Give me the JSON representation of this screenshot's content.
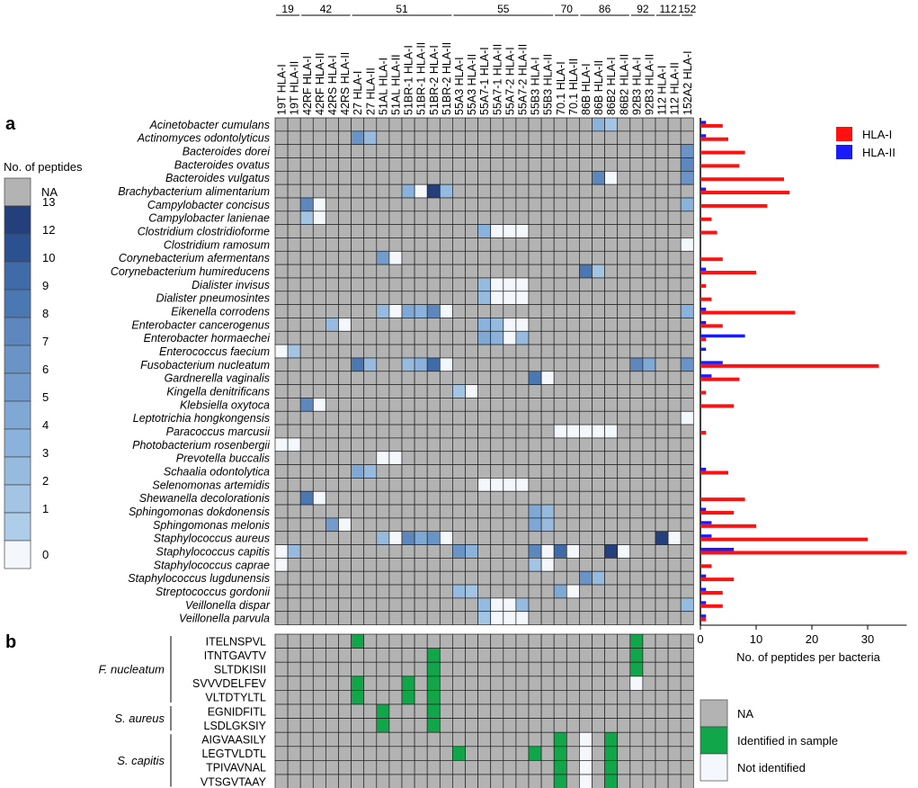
{
  "panel_labels": {
    "a": "a",
    "b": "b"
  },
  "colors": {
    "na": "#b3b3b3",
    "zero": "#f4f8fc",
    "identified": "#12a64a",
    "not_identified": "#f4f8fc",
    "hla_i": "#ff1111",
    "hla_ii": "#1a1aff",
    "highlight_text": "#e41a1c",
    "scale": [
      "#f4f8fc",
      "#aecde8",
      "#a3c4e3",
      "#97bbdf",
      "#8bb2da",
      "#80a8d4",
      "#739ccc",
      "#6a94c6",
      "#5e88bd",
      "#4a78b3",
      "#3f6ba8",
      "#355e9c",
      "#2c5190",
      "#233f7c"
    ]
  },
  "patients": [
    {
      "label": "19",
      "cols": 2
    },
    {
      "label": "42",
      "cols": 4
    },
    {
      "label": "51",
      "cols": 8
    },
    {
      "label": "55",
      "cols": 8
    },
    {
      "label": "70",
      "cols": 2
    },
    {
      "label": "86",
      "cols": 4
    },
    {
      "label": "92",
      "cols": 2
    },
    {
      "label": "112",
      "cols": 2
    },
    {
      "label": "152",
      "cols": 1
    }
  ],
  "columns": [
    "19T HLA-I",
    "19T HLA-II",
    "42RF HLA-I",
    "42RF HLA-II",
    "42RS HLA-I",
    "42RS HLA-II",
    "27 HLA-I",
    "27 HLA-II",
    "51AL HLA-I",
    "51AL HLA-II",
    "51BR-1 HLA-I",
    "51BR-1 HLA-II",
    "51BR-2 HLA-I",
    "51BR-2 HLA-II",
    "55A3 HLA-I",
    "55A3 HLA-II",
    "55A7-1 HLA-I",
    "55A7-1 HLA-II",
    "55A7-2 HLA-I",
    "55A7-2 HLA-II",
    "55B3 HLA-I",
    "55B3 HLA-II",
    "70.1 HLA-I",
    "70.1 HLA-II",
    "86B HLA-I",
    "86B HLA-II",
    "86B2 HLA-I",
    "86B2 HLA-II",
    "92B3 HLA-I",
    "92B3 HLA-II",
    "112 HLA-I",
    "112 HLA-II",
    "152A2 HLA-I"
  ],
  "legend_a": {
    "title": "No. of peptides",
    "na_label": "NA",
    "levels": [
      "13",
      "12",
      "10",
      "9",
      "8",
      "7",
      "6",
      "5",
      "4",
      "3",
      "2",
      "1",
      "0"
    ],
    "level_values": [
      13,
      12,
      10,
      9,
      8,
      7,
      6,
      5,
      4,
      3,
      2,
      1,
      0
    ]
  },
  "heatmap_a": {
    "bacteria": [
      {
        "name": "Acinetobacter cumulans",
        "red": false,
        "cells": {
          "25": 4,
          "26": 2
        }
      },
      {
        "name": "Actinomyces odontolyticus",
        "red": false,
        "cells": {
          "6": 7,
          "7": 3
        }
      },
      {
        "name": "Bacteroides dorei",
        "red": false,
        "cells": {
          "32": 7
        }
      },
      {
        "name": "Bacteroides ovatus",
        "red": false,
        "cells": {
          "32": 8
        }
      },
      {
        "name": "Bacteroides vulgatus",
        "red": true,
        "cells": {
          "25": 8,
          "26": 0,
          "32": 7
        }
      },
      {
        "name": "Brachybacterium alimentarium",
        "red": false,
        "cells": {
          "10": 4,
          "11": 0,
          "12": 13,
          "13": 3
        }
      },
      {
        "name": "Campylobacter concisus",
        "red": true,
        "cells": {
          "2": 8,
          "3": 0,
          "32": 4
        }
      },
      {
        "name": "Campylobacter lanienae",
        "red": false,
        "cells": {
          "2": 2,
          "3": 0
        }
      },
      {
        "name": "Clostridium clostridioforme",
        "red": true,
        "cells": {
          "16": 4,
          "17": 0,
          "18": 0,
          "19": 0
        }
      },
      {
        "name": "Clostridium ramosum",
        "red": false,
        "cells": {
          "32": 0
        }
      },
      {
        "name": "Corynebacterium afermentans",
        "red": false,
        "cells": {
          "8": 6,
          "9": 0
        }
      },
      {
        "name": "Corynebacterium humireducens",
        "red": false,
        "cells": {
          "24": 9,
          "25": 2
        }
      },
      {
        "name": "Dialister invisus",
        "red": false,
        "cells": {
          "16": 3,
          "17": 0,
          "18": 0,
          "19": 0
        }
      },
      {
        "name": "Dialister pneumosintes",
        "red": false,
        "cells": {
          "16": 3,
          "17": 0,
          "18": 0,
          "19": 0
        }
      },
      {
        "name": "Eikenella corrodens",
        "red": false,
        "cells": {
          "8": 3,
          "9": 0,
          "10": 5,
          "11": 4,
          "12": 8,
          "13": 0,
          "32": 4
        }
      },
      {
        "name": "Enterobacter cancerogenus",
        "red": false,
        "cells": {
          "4": 3,
          "5": 0,
          "16": 4,
          "17": 3,
          "18": 0,
          "19": 0
        }
      },
      {
        "name": "Enterobacter hormaechei",
        "red": true,
        "cells": {
          "16": 5,
          "17": 4,
          "18": 0,
          "19": 3
        }
      },
      {
        "name": "Enterococcus faecium",
        "red": false,
        "cells": {
          "0": 0,
          "1": 2
        }
      },
      {
        "name": "Fusobacterium nucleatum",
        "red": true,
        "cells": {
          "6": 9,
          "7": 3,
          "10": 3,
          "11": 4,
          "12": 10,
          "13": 0,
          "28": 8,
          "29": 5,
          "32": 7
        }
      },
      {
        "name": "Gardnerella vaginalis",
        "red": true,
        "cells": {
          "20": 9,
          "21": 0
        }
      },
      {
        "name": "Kingella denitrificans",
        "red": false,
        "cells": {
          "14": 2,
          "15": 0
        }
      },
      {
        "name": "Klebsiella oxytoca",
        "red": false,
        "cells": {
          "2": 8,
          "3": 0
        }
      },
      {
        "name": "Leptotrichia hongkongensis",
        "red": false,
        "cells": {
          "32": 0
        }
      },
      {
        "name": "Paracoccus marcusii",
        "red": false,
        "cells": {
          "22": 0,
          "23": 0,
          "24": 0,
          "25": 0,
          "26": 0
        }
      },
      {
        "name": "Photobacterium rosenbergii",
        "red": false,
        "cells": {
          "0": 0,
          "1": 0
        }
      },
      {
        "name": "Prevotella buccalis",
        "red": false,
        "cells": {
          "8": 0,
          "9": 0
        }
      },
      {
        "name": "Schaalia odontolytica",
        "red": false,
        "cells": {
          "6": 5,
          "7": 3
        }
      },
      {
        "name": "Selenomonas artemidis",
        "red": false,
        "cells": {
          "16": 0,
          "17": 0,
          "18": 0,
          "19": 0
        }
      },
      {
        "name": "Shewanella decolorationis",
        "red": false,
        "cells": {
          "2": 9,
          "3": 0
        }
      },
      {
        "name": "Sphingomonas dokdonensis",
        "red": false,
        "cells": {
          "20": 5,
          "21": 3
        }
      },
      {
        "name": "Sphingomonas melonis",
        "red": false,
        "cells": {
          "4": 6,
          "5": 0,
          "20": 5,
          "21": 3
        }
      },
      {
        "name": "Staphylococcus aureus",
        "red": true,
        "cells": {
          "8": 3,
          "9": 0,
          "10": 8,
          "11": 5,
          "12": 7,
          "13": 0,
          "30": 13,
          "31": 0
        }
      },
      {
        "name": "Staphylococcus capitis",
        "red": true,
        "cells": {
          "0": 0,
          "1": 3,
          "14": 7,
          "15": 4,
          "20": 8,
          "21": 0,
          "22": 10,
          "23": 0,
          "26": 13,
          "27": 0
        }
      },
      {
        "name": "Staphylococcus caprae",
        "red": true,
        "cells": {
          "0": 0,
          "20": 2,
          "21": 0
        }
      },
      {
        "name": "Staphylococcus lugdunensis",
        "red": true,
        "cells": {
          "24": 7,
          "25": 3
        }
      },
      {
        "name": "Streptococcus gordonii",
        "red": true,
        "cells": {
          "14": 3,
          "15": 2,
          "22": 5,
          "23": 0
        }
      },
      {
        "name": "Veillonella dispar",
        "red": false,
        "cells": {
          "16": 3,
          "17": 0,
          "18": 0,
          "19": 3,
          "32": 3
        }
      },
      {
        "name": "Veillonella parvula",
        "red": false,
        "cells": {
          "16": 2,
          "17": 0,
          "18": 0,
          "19": 0
        }
      }
    ]
  },
  "chart_data": {
    "type": "bar",
    "orientation": "horizontal",
    "categories": [
      "Acinetobacter cumulans",
      "Actinomyces odontolyticus",
      "Bacteroides dorei",
      "Bacteroides ovatus",
      "Bacteroides vulgatus",
      "Brachybacterium alimentarium",
      "Campylobacter concisus",
      "Campylobacter lanienae",
      "Clostridium clostridioforme",
      "Clostridium ramosum",
      "Corynebacterium afermentans",
      "Corynebacterium humireducens",
      "Dialister invisus",
      "Dialister pneumosintes",
      "Eikenella corrodens",
      "Enterobacter cancerogenus",
      "Enterobacter hormaechei",
      "Enterococcus faecium",
      "Fusobacterium nucleatum",
      "Gardnerella vaginalis",
      "Kingella denitrificans",
      "Klebsiella oxytoca",
      "Leptotrichia hongkongensis",
      "Paracoccus marcusii",
      "Photobacterium rosenbergii",
      "Prevotella buccalis",
      "Schaalia odontolytica",
      "Selenomonas artemidis",
      "Shewanella decolorationis",
      "Sphingomonas dokdonensis",
      "Sphingomonas melonis",
      "Staphylococcus aureus",
      "Staphylococcus capitis",
      "Staphylococcus caprae",
      "Staphylococcus lugdunensis",
      "Streptococcus gordonii",
      "Veillonella dispar",
      "Veillonella parvula"
    ],
    "series": [
      {
        "name": "HLA-I",
        "values": [
          4,
          5,
          8,
          7,
          15,
          16,
          12,
          2,
          3,
          0,
          4,
          10,
          1,
          2,
          17,
          4,
          1,
          0,
          32,
          7,
          1,
          6,
          0,
          1,
          0,
          0,
          5,
          0,
          8,
          6,
          10,
          30,
          37,
          2,
          6,
          4,
          4,
          1
        ]
      },
      {
        "name": "HLA-II",
        "values": [
          1,
          1,
          0,
          0,
          0,
          1,
          0,
          0,
          0,
          0,
          0,
          1,
          0,
          0,
          1,
          1,
          8,
          1,
          4,
          2,
          0,
          0,
          0,
          0,
          0,
          0,
          1,
          0,
          0,
          1,
          2,
          2,
          6,
          0,
          1,
          1,
          1,
          1
        ]
      }
    ],
    "xlabel": "No. of peptides per bacteria",
    "xticks": [
      "0",
      "10",
      "20",
      "30"
    ],
    "xlim": [
      0,
      37
    ],
    "legend": "top-right"
  },
  "heatmap_b": {
    "groups": [
      {
        "label": "F. nucleatum",
        "rows": 5
      },
      {
        "label": "S. aureus",
        "rows": 2
      },
      {
        "label": "S. capitis",
        "rows": 4
      }
    ],
    "peptides": [
      {
        "seq": "ITELNSPVL",
        "cells": {
          "6": 1,
          "28": 1
        }
      },
      {
        "seq": "ITNTGAVTV",
        "cells": {
          "12": 1,
          "28": 1
        }
      },
      {
        "seq": "SLTDKISII",
        "cells": {
          "12": 1,
          "28": 1
        }
      },
      {
        "seq": "SVVVDELFEV",
        "cells": {
          "6": 1,
          "10": 1,
          "12": 1,
          "28": 0
        }
      },
      {
        "seq": "VLTDTYLTL",
        "cells": {
          "6": 1,
          "10": 1,
          "12": 1
        }
      },
      {
        "seq": "EGNIDFITL",
        "cells": {
          "8": 1,
          "12": 1
        }
      },
      {
        "seq": "LSDLGKSIY",
        "cells": {
          "8": 1,
          "12": 1
        }
      },
      {
        "seq": "AIGVAASILY",
        "cells": {
          "22": 1,
          "24": 0,
          "26": 1
        }
      },
      {
        "seq": "LEGTVLDTL",
        "cells": {
          "14": 1,
          "20": 1,
          "22": 1,
          "24": 0,
          "26": 1
        }
      },
      {
        "seq": "TPIVAVNAL",
        "cells": {
          "22": 1,
          "24": 0,
          "26": 1
        }
      },
      {
        "seq": "VTSGVTAAY",
        "cells": {
          "22": 1,
          "24": 0,
          "26": 1
        }
      }
    ]
  },
  "legend_b": {
    "na": "NA",
    "identified": "Identified in sample",
    "not_identified": "Not identified"
  }
}
